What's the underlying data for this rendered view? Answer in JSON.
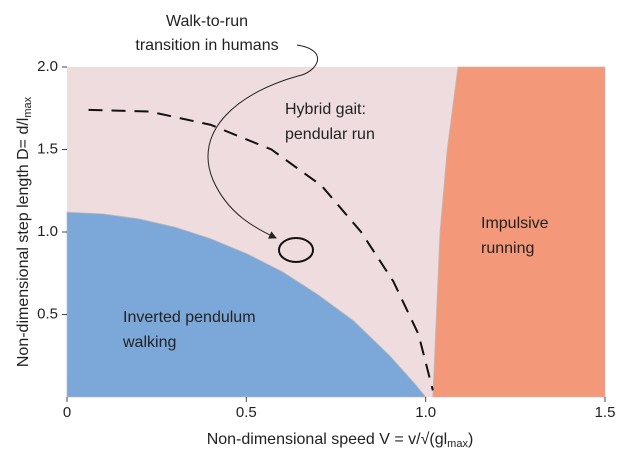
{
  "chart_data": {
    "type": "region",
    "annotation": [
      "Walk-to-run",
      "transition in humans"
    ],
    "x_label": {
      "text": "Non-dimensional speed  V = v/√(gl",
      "sub": "max",
      "end": ")"
    },
    "y_label": {
      "text": "Non-dimensional step length D= d/l",
      "sub": "max"
    },
    "xlim": [
      0,
      1.5
    ],
    "xticks": [
      0,
      0.5,
      {
        "value": 1.0,
        "label": "1.0"
      },
      1.5
    ],
    "ylim": [
      0,
      2.0
    ],
    "yticks": [
      0.5,
      {
        "value": 1.0,
        "label": "1.0"
      },
      1.5,
      {
        "value": 2.0,
        "label": "2.0"
      }
    ],
    "regions": [
      {
        "label": [
          "Hybrid gait:",
          "pendular run"
        ],
        "color": "#efdcde",
        "fill": "full"
      },
      {
        "label": [
          "Inverted pendulum",
          "walking"
        ],
        "color": "#7ba7d9",
        "fill": "below",
        "x": [
          0,
          0.1,
          0.2,
          0.3,
          0.4,
          0.5,
          0.6,
          0.7,
          0.8,
          0.9,
          0.97,
          1.0
        ],
        "y": [
          1.12,
          1.11,
          1.08,
          1.03,
          0.96,
          0.87,
          0.76,
          0.62,
          0.46,
          0.25,
          0.08,
          0
        ]
      },
      {
        "label": [
          "Impulsive",
          "running"
        ],
        "color": "#f4987a",
        "fill": "right",
        "x": [
          1.02,
          1.03,
          1.04,
          1.06,
          1.09
        ],
        "y": [
          0,
          0.5,
          1.0,
          1.5,
          2.0
        ]
      }
    ],
    "series": [
      {
        "color": "#111111",
        "dashed": true,
        "x": [
          0.06,
          0.23,
          0.4,
          0.57,
          0.71,
          0.82,
          0.91,
          0.98,
          1.02
        ],
        "values": [
          1.74,
          1.73,
          1.65,
          1.5,
          1.28,
          1.0,
          0.7,
          0.38,
          0.04
        ]
      }
    ]
  }
}
